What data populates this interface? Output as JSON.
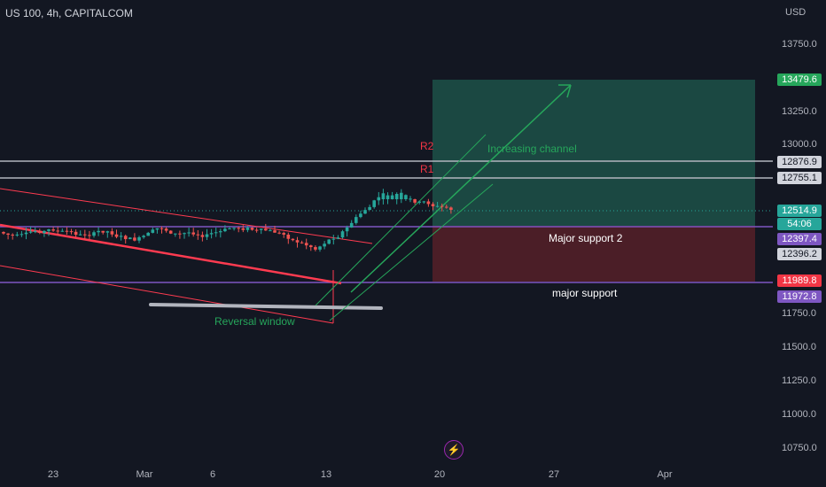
{
  "header": {
    "symbol_line": "US 100, 4h, CAPITALCOM"
  },
  "price_axis": {
    "currency": "USD",
    "ticks": [
      "13750.0",
      "13500.0",
      "13250.0",
      "13000.0",
      "12750.0",
      "12500.0",
      "12250.0",
      "12000.0",
      "11750.0",
      "11500.0",
      "11250.0",
      "11000.0",
      "10750.0"
    ]
  },
  "badges": {
    "target": "13479.6",
    "r2": "12876.9",
    "r1": "12755.1",
    "last_price": "12514.9",
    "countdown": "54:06",
    "support2_a": "12397.4",
    "support2_b": "12396.2",
    "support_a": "11989.8",
    "support_b": "11972.8"
  },
  "time_axis": [
    "23",
    "Mar",
    "6",
    "13",
    "20",
    "27",
    "Apr"
  ],
  "annotations": {
    "r2": "R2",
    "r1": "R1",
    "increasing_channel": "Increasing channel",
    "major_support_2": "Major support 2",
    "major_support": "major support",
    "reversal_window": "Reversal window"
  },
  "icons": {
    "flash": "flash-icon"
  },
  "colors": {
    "background": "#131722",
    "up": "#26a69a",
    "down": "#ef5350",
    "target_zone": "#1f5a4d",
    "stop_zone": "#5a2129",
    "support_line": "#7e57c2",
    "resistance_line": "#b2b5be",
    "channel_up": "#26a65b",
    "channel_down": "#ff3b50"
  }
}
